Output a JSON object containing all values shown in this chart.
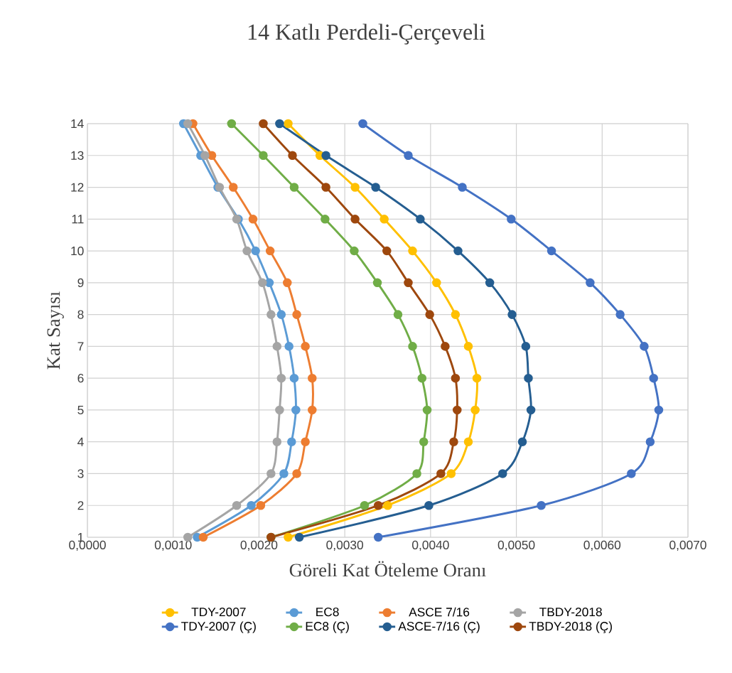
{
  "chart_data": {
    "type": "line",
    "title": "14 Katlı Perdeli-Çerçeveli",
    "xlabel": "Göreli Kat Öteleme Oranı",
    "ylabel": "Kat Sayısı",
    "xlim": [
      0,
      0.007
    ],
    "xticks": [
      {
        "value": 0,
        "label": "0,0000"
      },
      {
        "value": 0.001,
        "label": "0,0010"
      },
      {
        "value": 0.002,
        "label": "0,0020"
      },
      {
        "value": 0.003,
        "label": "0,0030"
      },
      {
        "value": 0.004,
        "label": "0,0040"
      },
      {
        "value": 0.005,
        "label": "0,0050"
      },
      {
        "value": 0.006,
        "label": "0,0060"
      },
      {
        "value": 0.007,
        "label": "0,0070"
      }
    ],
    "ylim": [
      1,
      14
    ],
    "yticks": [
      1,
      2,
      3,
      4,
      5,
      6,
      7,
      8,
      9,
      10,
      11,
      12,
      13,
      14
    ],
    "grid": true,
    "legend": "bottom",
    "marker": "circle",
    "line_style": "solid",
    "series": [
      {
        "name": "TDY-2007",
        "color": "#ffc000",
        "x": [
          0.00234,
          0.0035,
          0.00424,
          0.00444,
          0.00452,
          0.00454,
          0.00444,
          0.00429,
          0.00407,
          0.00379,
          0.00346,
          0.00312,
          0.00271,
          0.00234
        ],
        "values": [
          1,
          2,
          3,
          4,
          5,
          6,
          7,
          8,
          9,
          10,
          11,
          12,
          13,
          14
        ]
      },
      {
        "name": "EC8",
        "color": "#5b9bd5",
        "x": [
          0.00128,
          0.00191,
          0.00229,
          0.00238,
          0.00243,
          0.00241,
          0.00235,
          0.00226,
          0.00212,
          0.00196,
          0.00176,
          0.00152,
          0.00132,
          0.00112
        ],
        "values": [
          1,
          2,
          3,
          4,
          5,
          6,
          7,
          8,
          9,
          10,
          11,
          12,
          13,
          14
        ]
      },
      {
        "name": "ASCE 7/16",
        "color": "#ed7d31",
        "x": [
          0.00135,
          0.00202,
          0.00244,
          0.00254,
          0.00262,
          0.00262,
          0.00254,
          0.00244,
          0.00233,
          0.00213,
          0.00193,
          0.0017,
          0.00145,
          0.00123
        ],
        "values": [
          1,
          2,
          3,
          4,
          5,
          6,
          7,
          8,
          9,
          10,
          11,
          12,
          13,
          14
        ]
      },
      {
        "name": "TBDY-2018",
        "color": "#a5a5a5",
        "x": [
          0.00117,
          0.00174,
          0.00214,
          0.00221,
          0.00224,
          0.00226,
          0.00221,
          0.00214,
          0.00204,
          0.00186,
          0.00174,
          0.00154,
          0.00137,
          0.00117
        ],
        "values": [
          1,
          2,
          3,
          4,
          5,
          6,
          7,
          8,
          9,
          10,
          11,
          12,
          13,
          14
        ]
      },
      {
        "name": "TDY-2007 (Ç)",
        "color": "#4472c4",
        "x": [
          0.00339,
          0.00529,
          0.00634,
          0.00656,
          0.00666,
          0.0066,
          0.00649,
          0.00621,
          0.00586,
          0.00541,
          0.00494,
          0.00437,
          0.00374,
          0.00321
        ],
        "values": [
          1,
          2,
          3,
          4,
          5,
          6,
          7,
          8,
          9,
          10,
          11,
          12,
          13,
          14
        ]
      },
      {
        "name": "EC8 (Ç)",
        "color": "#70ad47",
        "x": [
          0.00214,
          0.00323,
          0.00384,
          0.00392,
          0.00396,
          0.0039,
          0.00379,
          0.00362,
          0.00338,
          0.00311,
          0.00277,
          0.00241,
          0.00205,
          0.00168
        ],
        "values": [
          1,
          2,
          3,
          4,
          5,
          6,
          7,
          8,
          9,
          10,
          11,
          12,
          13,
          14
        ]
      },
      {
        "name": "ASCE-7/16 (Ç)",
        "color": "#255e91",
        "x": [
          0.00247,
          0.00398,
          0.00484,
          0.00507,
          0.00517,
          0.00514,
          0.00511,
          0.00495,
          0.00469,
          0.00432,
          0.00388,
          0.00336,
          0.00278,
          0.00224
        ],
        "values": [
          1,
          2,
          3,
          4,
          5,
          6,
          7,
          8,
          9,
          10,
          11,
          12,
          13,
          14
        ]
      },
      {
        "name": "TBDY-2018 (Ç)",
        "color": "#9e480e",
        "x": [
          0.00214,
          0.00339,
          0.00412,
          0.00427,
          0.00431,
          0.00429,
          0.00417,
          0.00399,
          0.00374,
          0.00349,
          0.00312,
          0.00278,
          0.00239,
          0.00205
        ],
        "values": [
          1,
          2,
          3,
          4,
          5,
          6,
          7,
          8,
          9,
          10,
          11,
          12,
          13,
          14
        ]
      }
    ]
  }
}
